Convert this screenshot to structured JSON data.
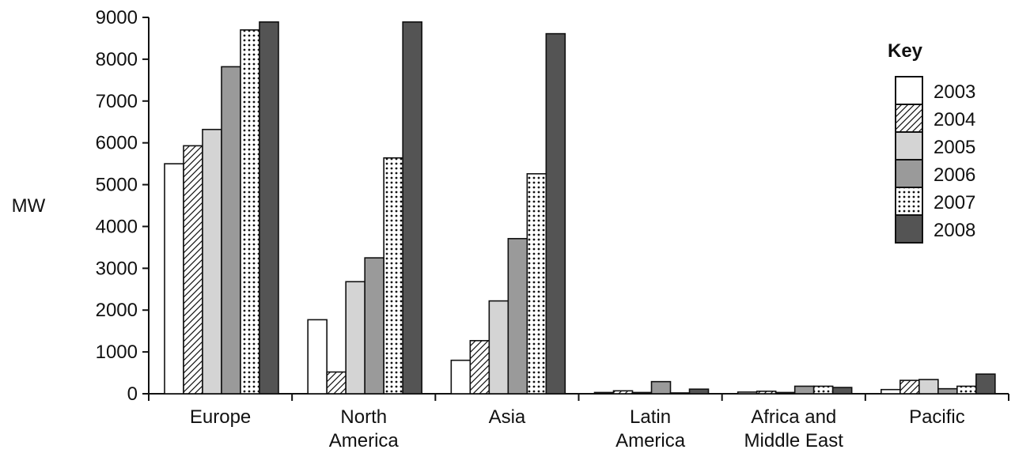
{
  "chart_data": {
    "type": "bar",
    "title": "",
    "xlabel": "",
    "ylabel": "MW",
    "ylim": [
      0,
      9000
    ],
    "yticks": [
      "0",
      "1000",
      "2000",
      "3000",
      "4000",
      "5000",
      "6000",
      "7000",
      "8000",
      "9000"
    ],
    "categories": [
      [
        "Europe"
      ],
      [
        "North",
        "America"
      ],
      [
        "Asia"
      ],
      [
        "Latin",
        "America"
      ],
      [
        "Africa and",
        "Middle East"
      ],
      [
        "Pacific"
      ]
    ],
    "legend_title": "Key",
    "legend_position": "top-right",
    "grid": false,
    "series": [
      {
        "name": "2003",
        "fill": "white",
        "color": "#ffffff",
        "values": [
          5500,
          1770,
          800,
          30,
          40,
          100
        ]
      },
      {
        "name": "2004",
        "fill": "hatch",
        "color": "#ffffff",
        "values": [
          5930,
          520,
          1270,
          70,
          60,
          320
        ]
      },
      {
        "name": "2005",
        "fill": "light",
        "color": "#d4d4d4",
        "values": [
          6320,
          2680,
          2220,
          30,
          30,
          340
        ]
      },
      {
        "name": "2006",
        "fill": "medium",
        "color": "#9a9a9a",
        "values": [
          7820,
          3250,
          3710,
          290,
          180,
          120
        ]
      },
      {
        "name": "2007",
        "fill": "dots",
        "color": "#ffffff",
        "values": [
          8700,
          5640,
          5260,
          20,
          180,
          180
        ]
      },
      {
        "name": "2008",
        "fill": "dark",
        "color": "#545454",
        "values": [
          8890,
          8890,
          8610,
          110,
          150,
          470
        ]
      }
    ]
  }
}
